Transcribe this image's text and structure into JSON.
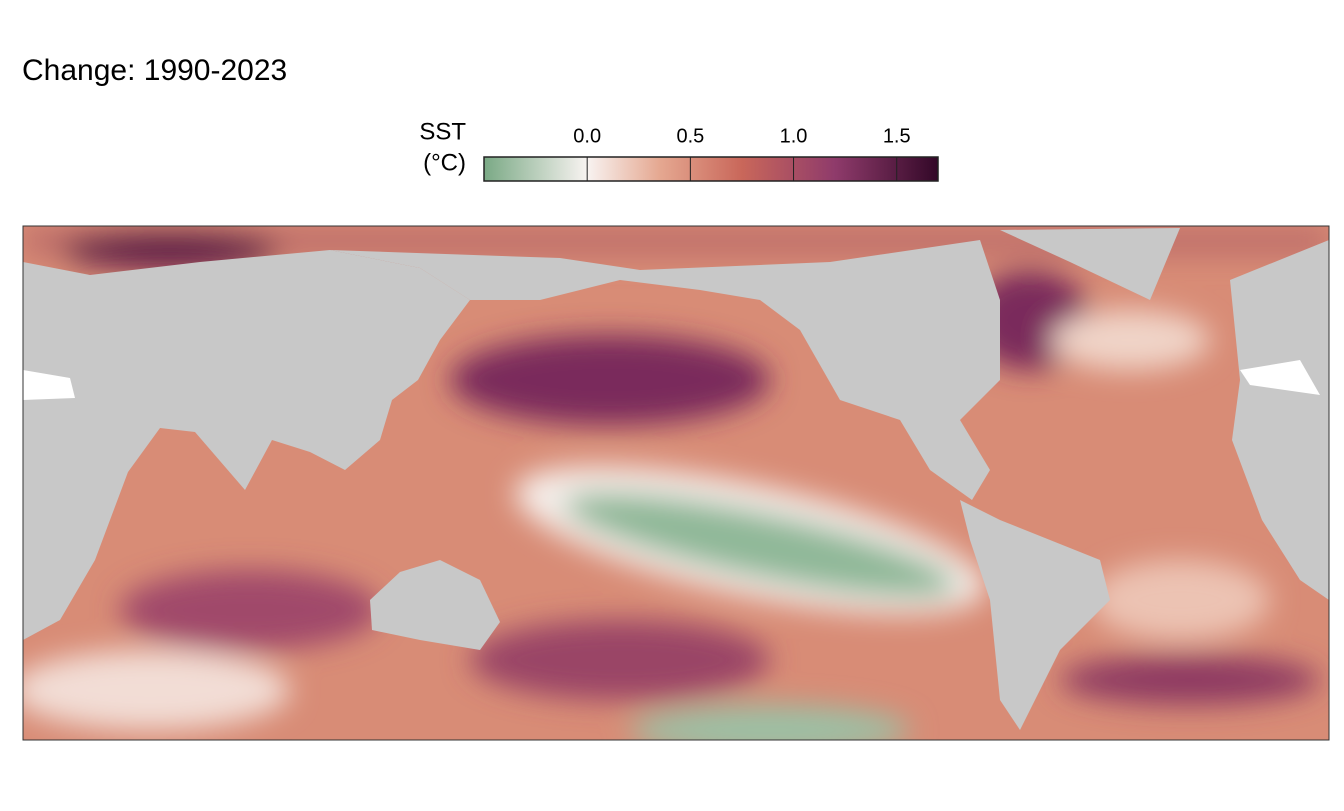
{
  "title": "Change:  1990-2023",
  "legend": {
    "title_lines": [
      "SST",
      "(°C)"
    ],
    "limits": [
      -0.5,
      1.7
    ],
    "ticks": [
      {
        "value": 0,
        "label": "0.0"
      },
      {
        "value": 0.5,
        "label": "0.5"
      },
      {
        "value": 1,
        "label": "1.0"
      },
      {
        "value": 1.5,
        "label": "1.5"
      }
    ],
    "colors": [
      {
        "value": -0.5,
        "color": "#7aa985"
      },
      {
        "value": 0,
        "color": "#f8f3f1"
      },
      {
        "value": 0.35,
        "color": "#e5a891"
      },
      {
        "value": 0.75,
        "color": "#c9675a"
      },
      {
        "value": 1.2,
        "color": "#8f3b6b"
      },
      {
        "value": 1.7,
        "color": "#330828"
      }
    ]
  }
}
